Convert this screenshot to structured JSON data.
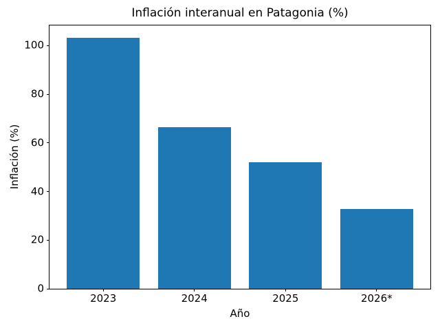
{
  "chart_data": {
    "type": "bar",
    "title": "Inflación interanual en Patagonia (%)",
    "xlabel": "Año",
    "ylabel": "Inflación (%)",
    "categories": [
      "2023",
      "2024",
      "2025",
      "2026*"
    ],
    "values": [
      103.2,
      66.5,
      52.0,
      32.8
    ],
    "ytick_labels": [
      "0",
      "20",
      "40",
      "60",
      "80",
      "100"
    ],
    "yticks": [
      0,
      20,
      40,
      60,
      80,
      100
    ],
    "ylim": [
      0,
      108.3
    ],
    "xlim": [
      -0.59,
      3.59
    ],
    "bar_width": 0.8,
    "bar_color": "#1f77b4",
    "axis_color": "#000000",
    "background_color": "#ffffff",
    "grid": false,
    "legend_position": "none"
  }
}
